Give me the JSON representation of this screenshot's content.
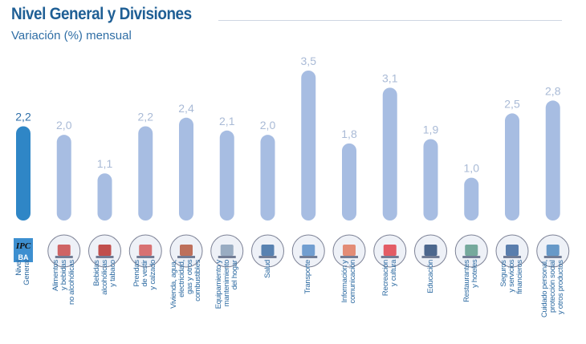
{
  "header": {
    "title": "Nivel General y Divisiones",
    "subtitle": "Variación (%) mensual"
  },
  "logo": {
    "text_top": "IPC",
    "text_bottom": "BA"
  },
  "colors": {
    "highlight": "#2f86c6",
    "bar": "#a7bde2",
    "highlight_label": "#2d6ea8",
    "label": "#a9bad6",
    "category_text": "#2a68a0"
  },
  "chart_data": {
    "type": "bar",
    "title": "Nivel General y Divisiones",
    "subtitle": "Variación (%) mensual",
    "categories": [
      "Nivel\nGeneral",
      "Alimentos\ny bebidas\nno alcohólicas",
      "Bebidas\nalcohólicas\ny tabaco",
      "Prendas\nde vestir\ny calzado",
      "Vivienda, agua,\nelectricidad,\ngas y otros\ncombustibles",
      "Equipamiento y\nmantenimiento\ndel hogar",
      "Salud",
      "Transporte",
      "Información y\ncomunicación",
      "Recreación\ny cultura",
      "Educación",
      "Restaurantes\ny hoteles",
      "Seguros\ny servicios\nfinancieros",
      "Cuidado personal,\nprotección social\ny otros productos"
    ],
    "values": [
      2.2,
      2.0,
      1.1,
      2.2,
      2.4,
      2.1,
      2.0,
      3.5,
      1.8,
      3.1,
      1.9,
      1.0,
      2.5,
      2.8
    ],
    "data_labels": [
      "2,2",
      "2,0",
      "1,1",
      "2,2",
      "2,4",
      "2,1",
      "2,0",
      "3,5",
      "1,8",
      "3,1",
      "1,9",
      "1,0",
      "2,5",
      "2,8"
    ],
    "icons": [
      "ipc-ba-logo",
      "food-icon",
      "wine-icon",
      "clothing-icon",
      "house-icon",
      "washing-machine-icon",
      "doctor-icon",
      "transport-icon",
      "laptop-icon",
      "theater-icon",
      "school-icon",
      "restaurant-bell-icon",
      "bank-icon",
      "personal-care-icon"
    ],
    "highlighted_index": 0,
    "ylim": [
      0,
      3.5
    ],
    "grid": false,
    "legend": "none"
  }
}
